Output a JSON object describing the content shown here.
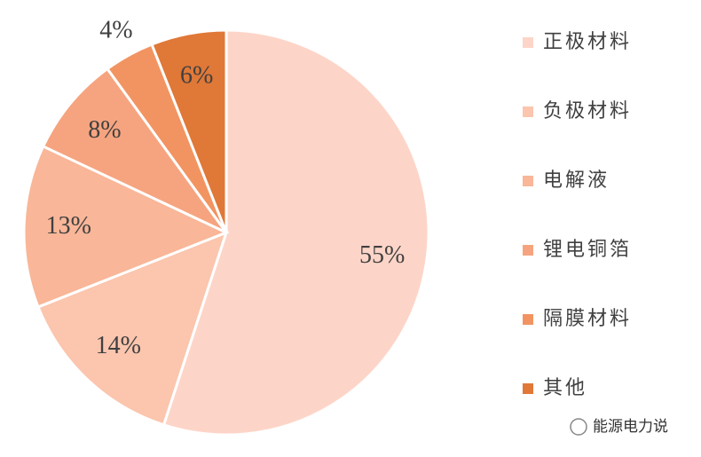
{
  "chart_data": {
    "type": "pie",
    "categories": [
      "正极材料",
      "负极材料",
      "电解液",
      "锂电铜箔",
      "隔膜材料",
      "其他"
    ],
    "values": [
      55,
      14,
      13,
      8,
      4,
      6
    ],
    "value_labels": [
      "55%",
      "14%",
      "13%",
      "8%",
      "4%",
      "6%"
    ],
    "colors": [
      "#fdd5c8",
      "#fbc5ae",
      "#f9b698",
      "#f6a47f",
      "#f29461",
      "#e07837"
    ],
    "legend": "right",
    "watermark": "能源电力说"
  }
}
